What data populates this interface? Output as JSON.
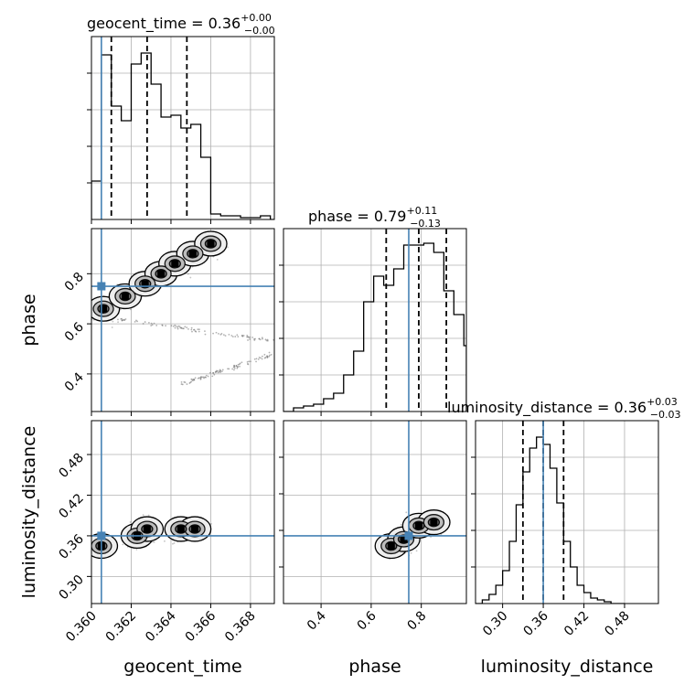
{
  "colors": {
    "truth": "#4682b4",
    "hist": "#000000",
    "grid": "#b0b0b0",
    "scatter": "#555555"
  },
  "params": [
    {
      "name": "geocent_time",
      "label": "geocent_time",
      "title_main": "geocent_time = 0.36",
      "title_sup": "+0.00",
      "title_sub": "−0.00",
      "range": [
        0.36,
        0.3692
      ],
      "ticks": [
        0.36,
        0.362,
        0.364,
        0.366,
        0.368
      ],
      "tick_labels": [
        "0.360",
        "0.362",
        "0.364",
        "0.366",
        "0.368"
      ],
      "truth": 0.3605,
      "quantiles": [
        0.361,
        0.3628,
        0.3648
      ]
    },
    {
      "name": "phase",
      "label": "phase",
      "title_main": "phase = 0.79",
      "title_sup": "+0.11",
      "title_sub": "−0.13",
      "range": [
        0.25,
        0.98
      ],
      "ticks": [
        0.4,
        0.6,
        0.8
      ],
      "tick_labels": [
        "0.4",
        "0.6",
        "0.8"
      ],
      "truth": 0.75,
      "quantiles": [
        0.66,
        0.79,
        0.9
      ]
    },
    {
      "name": "luminosity_distance",
      "label": "luminosity_distance",
      "title_main": "luminosity_distance = 0.36",
      "title_sup": "+0.03",
      "title_sub": "−0.03",
      "range": [
        0.26,
        0.53
      ],
      "ticks": [
        0.3,
        0.36,
        0.42,
        0.48
      ],
      "tick_labels": [
        "0.30",
        "0.36",
        "0.42",
        "0.48"
      ],
      "truth": 0.36,
      "quantiles": [
        0.33,
        0.36,
        0.39
      ]
    }
  ],
  "chart_data": {
    "type": "corner",
    "grid": true,
    "diagonal_histograms": [
      {
        "param": "geocent_time",
        "bin_edges": [
          0.36,
          0.3605,
          0.361,
          0.3615,
          0.362,
          0.3625,
          0.363,
          0.3635,
          0.364,
          0.3645,
          0.365,
          0.3655,
          0.366,
          0.3665,
          0.367,
          0.3675,
          0.368,
          0.3685,
          0.369,
          0.3692
        ],
        "counts": [
          0.21,
          0.9,
          0.62,
          0.54,
          0.85,
          0.91,
          0.74,
          0.56,
          0.57,
          0.5,
          0.52,
          0.34,
          0.03,
          0.02,
          0.02,
          0.01,
          0.01,
          0.02,
          0.0
        ]
      },
      {
        "param": "phase",
        "bin_edges": [
          0.25,
          0.29,
          0.33,
          0.37,
          0.41,
          0.45,
          0.49,
          0.53,
          0.57,
          0.61,
          0.65,
          0.69,
          0.73,
          0.77,
          0.81,
          0.85,
          0.89,
          0.93,
          0.97,
          0.98
        ],
        "counts": [
          0.0,
          0.02,
          0.03,
          0.04,
          0.07,
          0.1,
          0.2,
          0.33,
          0.6,
          0.74,
          0.69,
          0.78,
          0.91,
          0.91,
          0.92,
          0.87,
          0.66,
          0.53,
          0.36
        ]
      },
      {
        "param": "luminosity_distance",
        "bin_edges": [
          0.26,
          0.27,
          0.28,
          0.29,
          0.3,
          0.31,
          0.32,
          0.33,
          0.34,
          0.35,
          0.36,
          0.37,
          0.38,
          0.39,
          0.4,
          0.41,
          0.42,
          0.43,
          0.44,
          0.45,
          0.46,
          0.47,
          0.48
        ],
        "counts": [
          0.0,
          0.02,
          0.05,
          0.1,
          0.18,
          0.34,
          0.54,
          0.72,
          0.85,
          0.91,
          0.87,
          0.74,
          0.55,
          0.34,
          0.2,
          0.1,
          0.06,
          0.03,
          0.02,
          0.01,
          0.0,
          0.0
        ]
      }
    ],
    "contour_panels": [
      {
        "x": "geocent_time",
        "y": "phase",
        "density_peaks": [
          [
            0.3606,
            0.66
          ],
          [
            0.3617,
            0.71
          ],
          [
            0.3627,
            0.76
          ],
          [
            0.3635,
            0.8
          ],
          [
            0.3642,
            0.84
          ],
          [
            0.3651,
            0.88
          ],
          [
            0.366,
            0.92
          ]
        ],
        "scatter_tails": [
          {
            "from": [
              0.3612,
              0.62
            ],
            "to": [
              0.3692,
              0.53
            ]
          },
          {
            "from": [
              0.3645,
              0.36
            ],
            "to": [
              0.3692,
              0.48
            ]
          }
        ]
      },
      {
        "x": "geocent_time",
        "y": "luminosity_distance",
        "density_peaks": [
          [
            0.3605,
            0.345
          ],
          [
            0.3623,
            0.36
          ],
          [
            0.3628,
            0.37
          ],
          [
            0.3645,
            0.37
          ],
          [
            0.3652,
            0.37
          ]
        ]
      },
      {
        "x": "phase",
        "y": "luminosity_distance",
        "density_peaks": [
          [
            0.68,
            0.345
          ],
          [
            0.73,
            0.355
          ],
          [
            0.79,
            0.375
          ],
          [
            0.85,
            0.38
          ]
        ]
      }
    ]
  }
}
